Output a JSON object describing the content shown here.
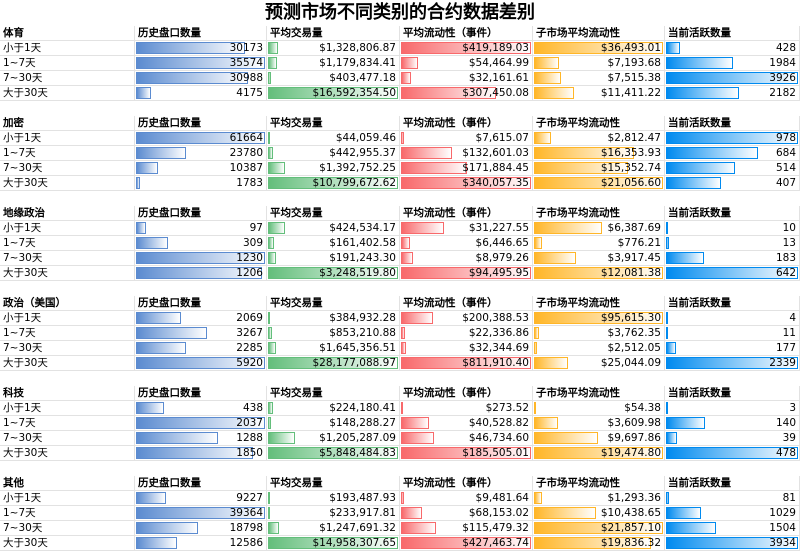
{
  "title": "预测市场不同类别的合约数据差别",
  "sections": [
    {
      "name": "体育",
      "columns": [
        "历史盘口数量",
        "平均交易量",
        "平均流动性（事件）",
        "子市场平均流动性",
        "当前活跃数量"
      ],
      "rows": [
        {
          "label": "小于1天",
          "cells": [
            30173,
            {
              "value": 1328806.87,
              "label": "$1,328,806.87"
            },
            {
              "value": 419189.03,
              "label": "$419,189.03"
            },
            {
              "value": 36493.01,
              "label": "$36,493.01"
            },
            428
          ]
        },
        {
          "label": "1~7天",
          "cells": [
            35574,
            {
              "value": 1179834.41,
              "label": "$1,179,834.41"
            },
            {
              "value": 54464.99,
              "label": "$54,464.99"
            },
            {
              "value": 7193.68,
              "label": "$7,193.68"
            },
            1984
          ]
        },
        {
          "label": "7~30天",
          "cells": [
            30988,
            {
              "value": 403477.18,
              "label": "$403,477.18"
            },
            {
              "value": 32161.61,
              "label": "$32,161.61"
            },
            {
              "value": 7515.38,
              "label": "$7,515.38"
            },
            3926
          ]
        },
        {
          "label": "大于30天",
          "cells": [
            4175,
            {
              "value": 16592354.5,
              "label": "$16,592,354.50"
            },
            {
              "value": 307450.08,
              "label": "$307,450.08"
            },
            {
              "value": 11411.22,
              "label": "$11,411.22"
            },
            2182
          ]
        }
      ]
    },
    {
      "name": "加密",
      "columns": [
        "历史盘口数量",
        "平均交易量",
        "平均流动性（事件）",
        "子市场平均流动性",
        "当前活跃数量"
      ],
      "rows": [
        {
          "label": "小于1天",
          "cells": [
            61664,
            {
              "value": 44059.46,
              "label": "$44,059.46"
            },
            {
              "value": 7615.07,
              "label": "$7,615.07"
            },
            {
              "value": 2812.47,
              "label": "$2,812.47"
            },
            978
          ]
        },
        {
          "label": "1~7天",
          "cells": [
            23780,
            {
              "value": 442955.37,
              "label": "$442,955.37"
            },
            {
              "value": 132601.03,
              "label": "$132,601.03"
            },
            {
              "value": 16353.93,
              "label": "$16,353.93"
            },
            684
          ]
        },
        {
          "label": "7~30天",
          "cells": [
            10387,
            {
              "value": 1392752.25,
              "label": "$1,392,752.25"
            },
            {
              "value": 171884.45,
              "label": "$171,884.45"
            },
            {
              "value": 15352.74,
              "label": "$15,352.74"
            },
            514
          ]
        },
        {
          "label": "大于30天",
          "cells": [
            1783,
            {
              "value": 10799672.62,
              "label": "$10,799,672.62"
            },
            {
              "value": 340057.35,
              "label": "$340,057.35"
            },
            {
              "value": 21056.6,
              "label": "$21,056.60"
            },
            407
          ]
        }
      ]
    },
    {
      "name": "地缘政治",
      "columns": [
        "历史盘口数量",
        "平均交易量",
        "平均流动性（事件）",
        "子市场平均流动性",
        "当前活跃数量"
      ],
      "rows": [
        {
          "label": "小于1天",
          "cells": [
            97,
            {
              "value": 424534.17,
              "label": "$424,534.17"
            },
            {
              "value": 31227.55,
              "label": "$31,227.55"
            },
            {
              "value": 6387.69,
              "label": "$6,387.69"
            },
            10
          ]
        },
        {
          "label": "1~7天",
          "cells": [
            309,
            {
              "value": 161402.58,
              "label": "$161,402.58"
            },
            {
              "value": 6446.65,
              "label": "$6,446.65"
            },
            {
              "value": 776.21,
              "label": "$776.21"
            },
            13
          ]
        },
        {
          "label": "7~30天",
          "cells": [
            1230,
            {
              "value": 191243.3,
              "label": "$191,243.30"
            },
            {
              "value": 8979.26,
              "label": "$8,979.26"
            },
            {
              "value": 3917.45,
              "label": "$3,917.45"
            },
            183
          ]
        },
        {
          "label": "大于30天",
          "cells": [
            1206,
            {
              "value": 3248519.8,
              "label": "$3,248,519.80"
            },
            {
              "value": 94495.95,
              "label": "$94,495.95"
            },
            {
              "value": 12081.38,
              "label": "$12,081.38"
            },
            642
          ]
        }
      ]
    },
    {
      "name": "政治（美国）",
      "columns": [
        "历史盘口数量",
        "平均交易量",
        "平均流动性（事件）",
        "子市场平均流动性",
        "当前活跃数量"
      ],
      "rows": [
        {
          "label": "小于1天",
          "cells": [
            2069,
            {
              "value": 384932.28,
              "label": "$384,932.28"
            },
            {
              "value": 200388.53,
              "label": "$200,388.53"
            },
            {
              "value": 95615.3,
              "label": "$95,615.30"
            },
            4
          ]
        },
        {
          "label": "1~7天",
          "cells": [
            3267,
            {
              "value": 853210.88,
              "label": "$853,210.88"
            },
            {
              "value": 22336.86,
              "label": "$22,336.86"
            },
            {
              "value": 3762.35,
              "label": "$3,762.35"
            },
            11
          ]
        },
        {
          "label": "7~30天",
          "cells": [
            2285,
            {
              "value": 1645356.51,
              "label": "$1,645,356.51"
            },
            {
              "value": 32344.69,
              "label": "$32,344.69"
            },
            {
              "value": 2512.05,
              "label": "$2,512.05"
            },
            177
          ]
        },
        {
          "label": "大于30天",
          "cells": [
            5920,
            {
              "value": 28177088.97,
              "label": "$28,177,088.97"
            },
            {
              "value": 811910.4,
              "label": "$811,910.40"
            },
            {
              "value": 25044.09,
              "label": "$25,044.09"
            },
            2339
          ]
        }
      ]
    },
    {
      "name": "科技",
      "columns": [
        "历史盘口数量",
        "平均交易量",
        "平均流动性（事件）",
        "子市场平均流动性",
        "当前活跃数量"
      ],
      "rows": [
        {
          "label": "小于1天",
          "cells": [
            438,
            {
              "value": 224180.41,
              "label": "$224,180.41"
            },
            {
              "value": 273.52,
              "label": "$273.52"
            },
            {
              "value": 54.38,
              "label": "$54.38"
            },
            3
          ]
        },
        {
          "label": "1~7天",
          "cells": [
            2037,
            {
              "value": 148288.27,
              "label": "$148,288.27"
            },
            {
              "value": 40528.82,
              "label": "$40,528.82"
            },
            {
              "value": 3609.98,
              "label": "$3,609.98"
            },
            140
          ]
        },
        {
          "label": "7~30天",
          "cells": [
            1288,
            {
              "value": 1205287.09,
              "label": "$1,205,287.09"
            },
            {
              "value": 46734.6,
              "label": "$46,734.60"
            },
            {
              "value": 9697.86,
              "label": "$9,697.86"
            },
            39
          ]
        },
        {
          "label": "大于30天",
          "cells": [
            1850,
            {
              "value": 5848484.83,
              "label": "$5,848,484.83"
            },
            {
              "value": 185505.01,
              "label": "$185,505.01"
            },
            {
              "value": 19474.8,
              "label": "$19,474.80"
            },
            478
          ]
        }
      ]
    },
    {
      "name": "其他",
      "columns": [
        "历史盘口数量",
        "平均交易量",
        "平均流动性（事件）",
        "子市场平均流动性",
        "当前活跃数量"
      ],
      "rows": [
        {
          "label": "小于1天",
          "cells": [
            9227,
            {
              "value": 193487.93,
              "label": "$193,487.93"
            },
            {
              "value": 9481.64,
              "label": "$9,481.64"
            },
            {
              "value": 1293.36,
              "label": "$1,293.36"
            },
            81
          ]
        },
        {
          "label": "1~7天",
          "cells": [
            39364,
            {
              "value": 233917.81,
              "label": "$233,917.81"
            },
            {
              "value": 68153.02,
              "label": "$68,153.02"
            },
            {
              "value": 10438.65,
              "label": "$10,438.65"
            },
            1029
          ]
        },
        {
          "label": "7~30天",
          "cells": [
            18798,
            {
              "value": 1247691.32,
              "label": "$1,247,691.32"
            },
            {
              "value": 115479.32,
              "label": "$115,479.32"
            },
            {
              "value": 21857.1,
              "label": "$21,857.10"
            },
            1504
          ]
        },
        {
          "label": "大于30天",
          "cells": [
            12586,
            {
              "value": 14958307.65,
              "label": "$14,958,307.65"
            },
            {
              "value": 427463.74,
              "label": "$427,463.74"
            },
            {
              "value": 19836.32,
              "label": "$19,836.32"
            },
            3934
          ]
        }
      ]
    }
  ]
}
